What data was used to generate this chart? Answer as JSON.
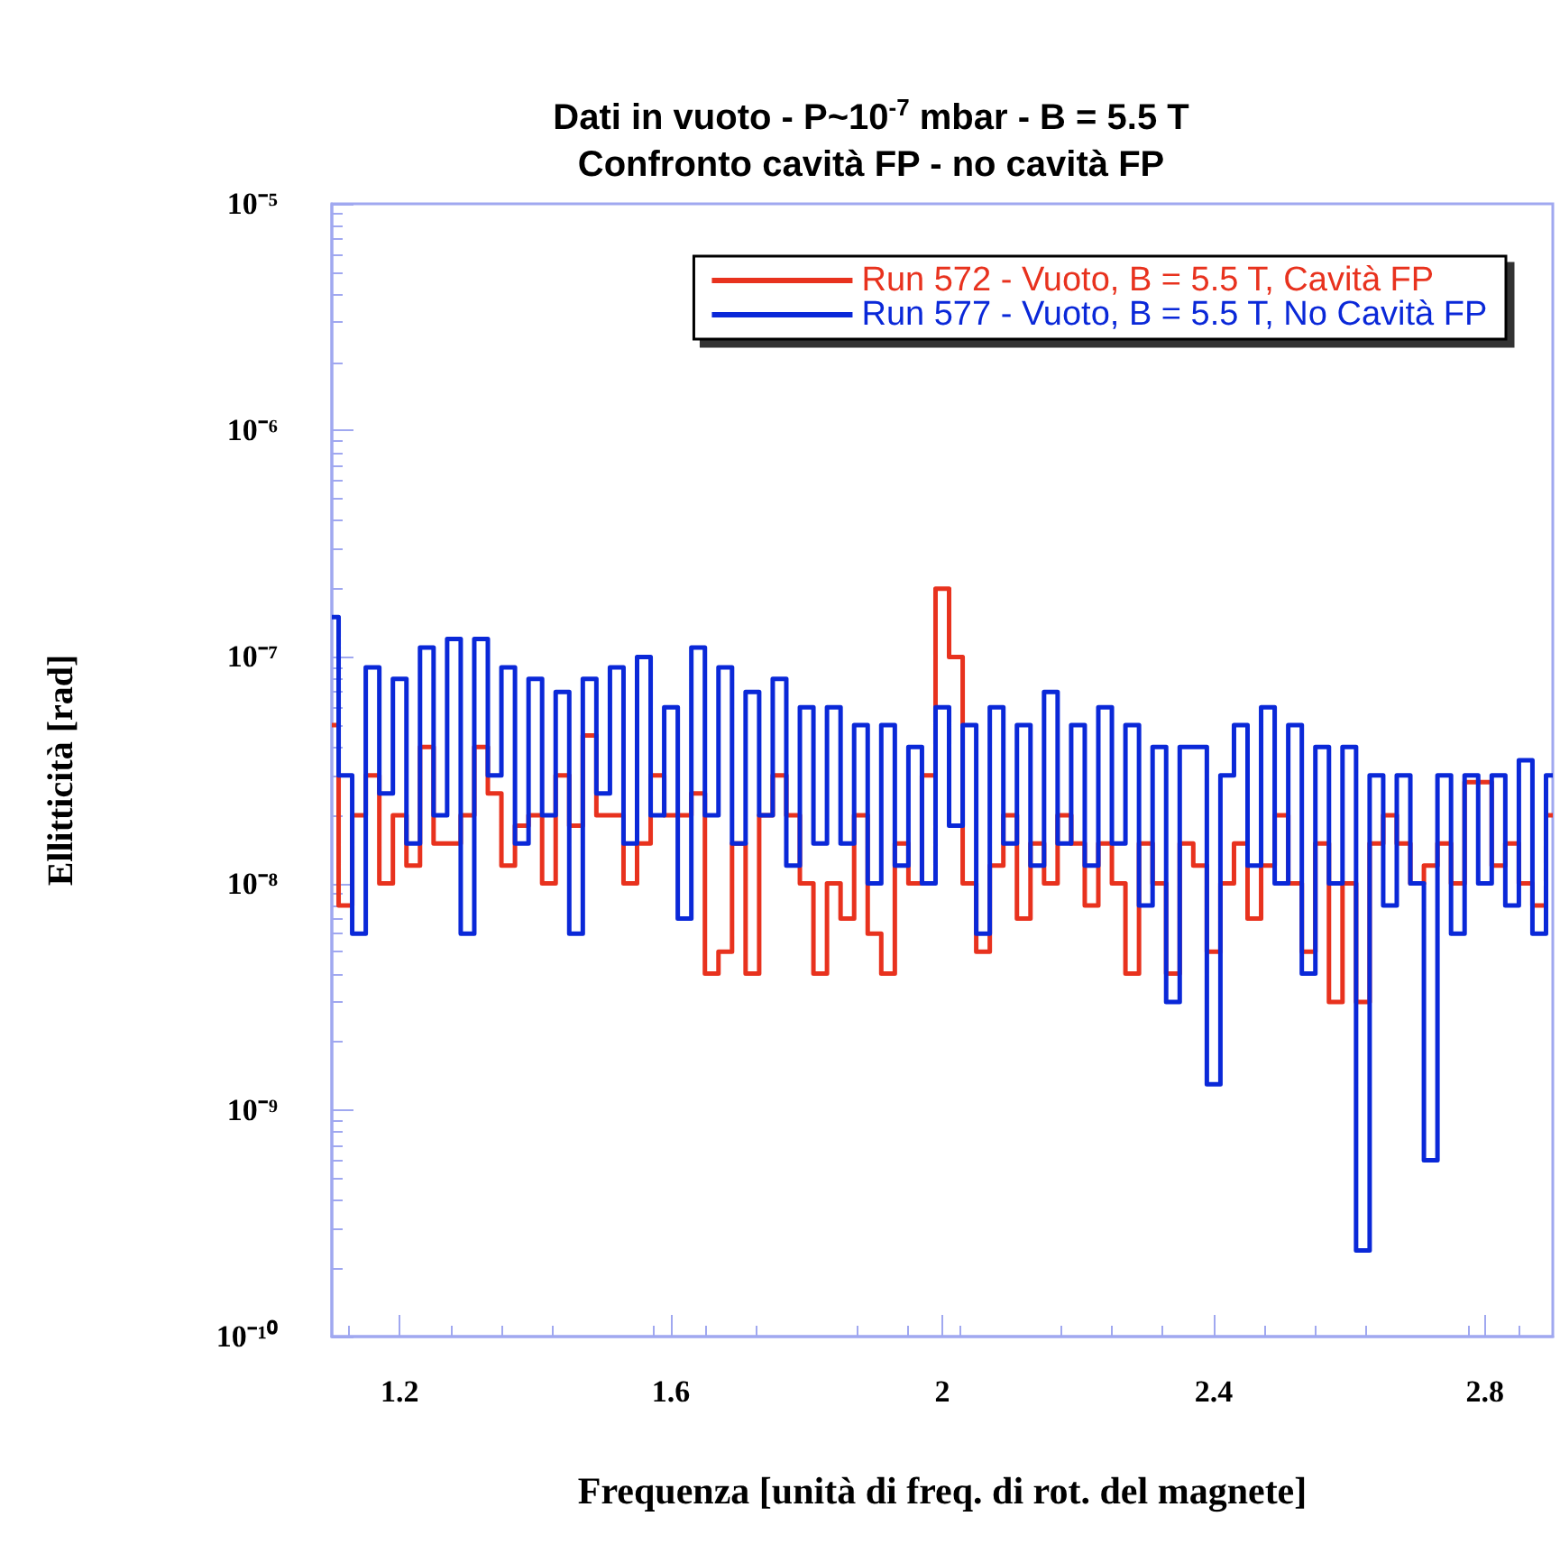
{
  "chart_data": {
    "type": "step",
    "title": "Dati in vuoto - P~10$^{-7}$ mbar - B = 5.5 T",
    "subtitle": "Confronto cavità FP - no cavità FP",
    "xlabel": "Frequenza [unità di freq. di rot. del magnete]",
    "ylabel": "Ellitticità [rad]",
    "x": [
      1.1,
      1.12,
      1.14,
      1.16,
      1.18,
      1.2,
      1.22,
      1.24,
      1.26,
      1.28,
      1.3,
      1.32,
      1.34,
      1.36,
      1.38,
      1.4,
      1.42,
      1.44,
      1.46,
      1.48,
      1.5,
      1.52,
      1.54,
      1.56,
      1.58,
      1.6,
      1.62,
      1.64,
      1.66,
      1.68,
      1.7,
      1.72,
      1.74,
      1.76,
      1.78,
      1.8,
      1.82,
      1.84,
      1.86,
      1.88,
      1.9,
      1.92,
      1.94,
      1.96,
      1.98,
      2,
      2.02,
      2.04,
      2.06,
      2.08,
      2.1,
      2.12,
      2.14,
      2.16,
      2.18,
      2.2,
      2.22,
      2.24,
      2.26,
      2.28,
      2.3,
      2.32,
      2.34,
      2.36,
      2.38,
      2.4,
      2.42,
      2.44,
      2.46,
      2.48,
      2.5,
      2.52,
      2.54,
      2.56,
      2.58,
      2.6,
      2.62,
      2.64,
      2.66,
      2.68,
      2.7,
      2.72,
      2.74,
      2.76,
      2.78,
      2.8,
      2.82,
      2.84,
      2.86,
      2.88,
      2.9
    ],
    "series": [
      {
        "name": "Run 572 - Vuoto, B = 5.5 T, Cavità FP",
        "color": "#e8321e",
        "values": [
          5e-08,
          8e-09,
          2e-08,
          3e-08,
          1e-08,
          2e-08,
          1.2e-08,
          4e-08,
          1.5e-08,
          1.5e-08,
          2e-08,
          4e-08,
          2.5e-08,
          1.2e-08,
          1.8e-08,
          2e-08,
          1e-08,
          3e-08,
          1.8e-08,
          4.5e-08,
          2e-08,
          2e-08,
          1e-08,
          1.5e-08,
          3e-08,
          2e-08,
          2e-08,
          2.5e-08,
          4e-09,
          5e-09,
          1.5e-08,
          4e-09,
          2e-08,
          3e-08,
          2e-08,
          1e-08,
          4e-09,
          1e-08,
          7e-09,
          2e-08,
          6e-09,
          4e-09,
          1.5e-08,
          1e-08,
          3e-08,
          2e-07,
          1e-07,
          1e-08,
          5e-09,
          1.2e-08,
          2e-08,
          7e-09,
          1.5e-08,
          1e-08,
          2e-08,
          1.5e-08,
          8e-09,
          1.5e-08,
          1e-08,
          4e-09,
          1.5e-08,
          1e-08,
          4e-09,
          1.5e-08,
          1.2e-08,
          5e-09,
          1e-08,
          1.5e-08,
          7e-09,
          1.2e-08,
          2e-08,
          1e-08,
          5e-09,
          1.5e-08,
          3e-09,
          1e-08,
          3e-09,
          1.5e-08,
          2e-08,
          1.5e-08,
          1e-08,
          1.2e-08,
          1.5e-08,
          1e-08,
          2.8e-08,
          2.8e-08,
          1.2e-08,
          1.5e-08,
          1e-08,
          8e-09,
          2e-08
        ]
      },
      {
        "name": "Run 577 - Vuoto, B = 5.5 T, No Cavità FP",
        "color": "#0a28d8",
        "values": [
          1.5e-07,
          3e-08,
          6e-09,
          9e-08,
          2.5e-08,
          8e-08,
          1.5e-08,
          1.1e-07,
          2e-08,
          1.2e-07,
          6e-09,
          1.2e-07,
          3e-08,
          9e-08,
          1.5e-08,
          8e-08,
          2e-08,
          7e-08,
          6e-09,
          8e-08,
          2.5e-08,
          9e-08,
          1.5e-08,
          1e-07,
          2e-08,
          6e-08,
          7e-09,
          1.1e-07,
          2e-08,
          9e-08,
          1.5e-08,
          7e-08,
          2e-08,
          8e-08,
          1.2e-08,
          6e-08,
          1.5e-08,
          6e-08,
          1.5e-08,
          5e-08,
          1e-08,
          5e-08,
          1.2e-08,
          4e-08,
          1e-08,
          6e-08,
          1.8e-08,
          5e-08,
          6e-09,
          6e-08,
          1.5e-08,
          5e-08,
          1.2e-08,
          7e-08,
          1.5e-08,
          5e-08,
          1.2e-08,
          6e-08,
          1.5e-08,
          5e-08,
          8e-09,
          4e-08,
          3e-09,
          4e-08,
          4e-08,
          1.3e-09,
          3e-08,
          5e-08,
          1.2e-08,
          6e-08,
          1e-08,
          5e-08,
          4e-09,
          4e-08,
          1e-08,
          4e-08,
          2.4e-10,
          3e-08,
          8e-09,
          3e-08,
          1e-08,
          6e-10,
          3e-08,
          6e-09,
          3e-08,
          1e-08,
          3e-08,
          8e-09,
          3.5e-08,
          6e-09,
          3e-08
        ]
      }
    ],
    "xlim": [
      1.1,
      2.9
    ],
    "xticks": [
      1.2,
      1.6,
      2,
      2.4,
      2.8
    ],
    "ylim": [
      1e-10,
      1e-05
    ],
    "yticks": [
      {
        "value": 1e-10,
        "label": "10⁻¹⁰"
      },
      {
        "value": 1e-09,
        "label": "10⁻⁹"
      },
      {
        "value": 1e-08,
        "label": "10⁻⁸"
      },
      {
        "value": 1e-07,
        "label": "10⁻⁷"
      },
      {
        "value": 1e-06,
        "label": "10⁻⁶"
      },
      {
        "value": 1e-05,
        "label": "10⁻⁵"
      }
    ],
    "log": "y",
    "grid": false,
    "legend": "top right",
    "line_style": "solid",
    "marker": "none"
  }
}
